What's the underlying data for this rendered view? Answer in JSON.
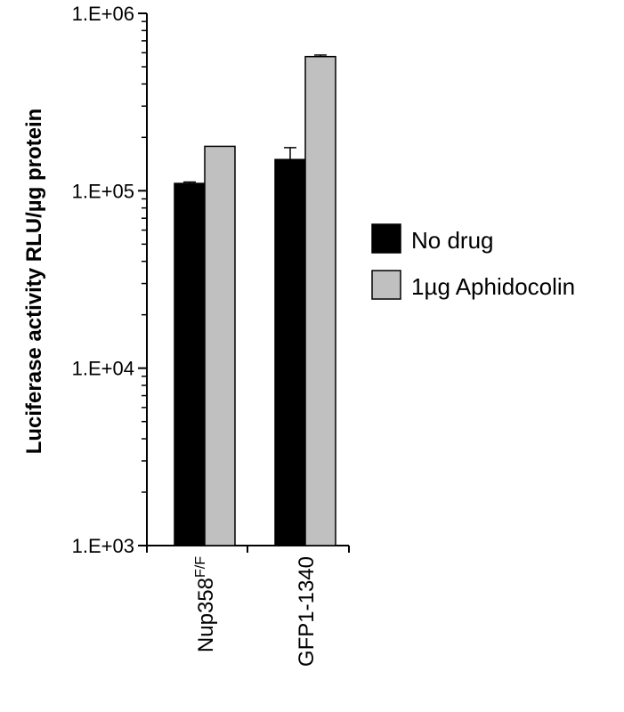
{
  "chart_data": {
    "type": "bar",
    "title": "",
    "xlabel": "",
    "ylabel": "Luciferase activity RLU/µg protein",
    "yscale": "log",
    "ylim": [
      1000,
      1000000
    ],
    "y_ticks": [
      "1.E+03",
      "1.E+04",
      "1.E+05",
      "1.E+06"
    ],
    "grid": false,
    "legend_position": "right",
    "categories": [
      {
        "label": "Nup358",
        "superscript": "F/F"
      },
      {
        "label": "GFP1-1340",
        "superscript": ""
      }
    ],
    "series": [
      {
        "name": "No drug",
        "color": "#000000",
        "values": [
          110000,
          150000
        ],
        "errors": [
          2000,
          25000
        ]
      },
      {
        "name": "1µg Aphidocolin",
        "color": "#c0c0c0",
        "values": [
          178000,
          570000
        ],
        "errors": [
          0,
          12000
        ]
      }
    ]
  }
}
